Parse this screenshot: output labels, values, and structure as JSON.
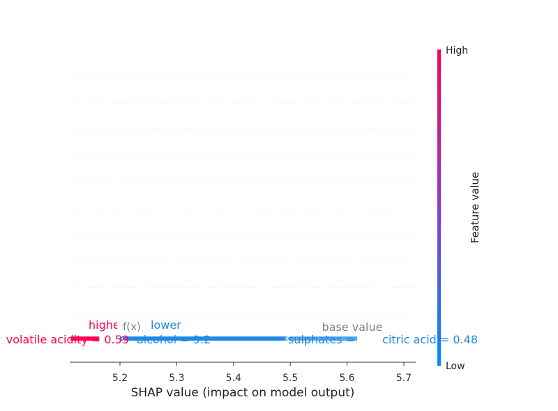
{
  "chart_data": {
    "type": "force",
    "xlabel": "SHAP value (impact on model output)",
    "xlim": [
      5.15,
      5.72
    ],
    "xticks": [
      5.2,
      5.3,
      5.4,
      5.5,
      5.6,
      5.7
    ],
    "base_value": 5.66,
    "fx": 5.2,
    "labels": {
      "higher": "higher",
      "lower": "lower",
      "fx": "f(x)",
      "base": "base value"
    },
    "features_positive": [
      {
        "label": "volatile acidity = 0.59",
        "start": 5.15,
        "end": 5.2
      }
    ],
    "features_negative": [
      {
        "label": "alcohol = 9.2",
        "start": 5.2,
        "end": 5.49
      },
      {
        "label": "sulphates = 0.53",
        "start": 5.49,
        "end": 5.62
      },
      {
        "label": "citric acid = 0.48",
        "start": 5.62,
        "end": 5.72
      }
    ],
    "colorbar": {
      "label": "Feature value",
      "high": "High",
      "low": "Low"
    },
    "colors": {
      "positive": "#ff0052",
      "negative": "#1e88e5",
      "base_text": "#808080",
      "grid": "#e6e6e6"
    }
  }
}
